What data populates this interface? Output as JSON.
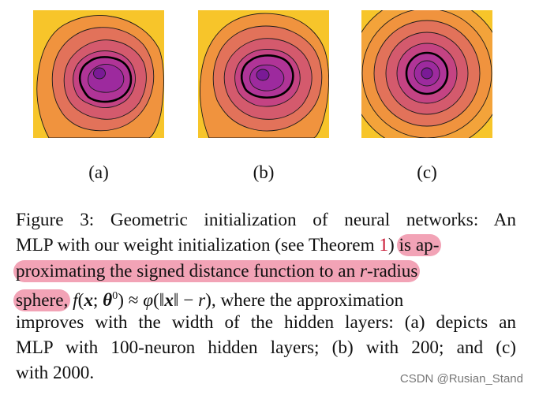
{
  "figure": {
    "panels": [
      {
        "id": "a",
        "label": "(a)"
      },
      {
        "id": "b",
        "label": "(b)"
      },
      {
        "id": "c",
        "label": "(c)"
      }
    ],
    "colors": {
      "outer": "#f7c52a",
      "ring1": "#f0933e",
      "ring2": "#e2725a",
      "ring3": "#d45a6d",
      "ring4": "#c44383",
      "ring5": "#b03497",
      "ring6": "#9d2a9e",
      "center": "#7a1a96",
      "contour": "#1a1a1a"
    }
  },
  "caption": {
    "line1": "Figure 3: Geometric initialization of neural networks: An",
    "line2_pre": "MLP with our weight initialization (see Theorem ",
    "line2_ref": "1",
    "line2_mid": ")",
    "line2_hl": "is ap-",
    "line3_hl_a": "proximating the signed distance function to an",
    "line3_r": "r",
    "line3_hl_b": "-radius",
    "line4_hl": "sphere,",
    "line4_f": "f",
    "line4_open": "(",
    "line4_x": "x",
    "line4_semi": "; ",
    "line4_theta": "θ",
    "line4_sup": "0",
    "line4_close": ") ≈ ",
    "line4_phi": "φ",
    "line4_norm": "(‖",
    "line4_x2": "x",
    "line4_norm2": "‖ − ",
    "line4_r": "r",
    "line4_end": "), where the approximation",
    "line5": "improves with the width of the hidden layers: (a) depicts an",
    "line6": "MLP with 100-neuron hidden layers; (b) with 200; and (c)",
    "line7": "with 2000."
  },
  "watermark": "CSDN @Rusian_Stand"
}
